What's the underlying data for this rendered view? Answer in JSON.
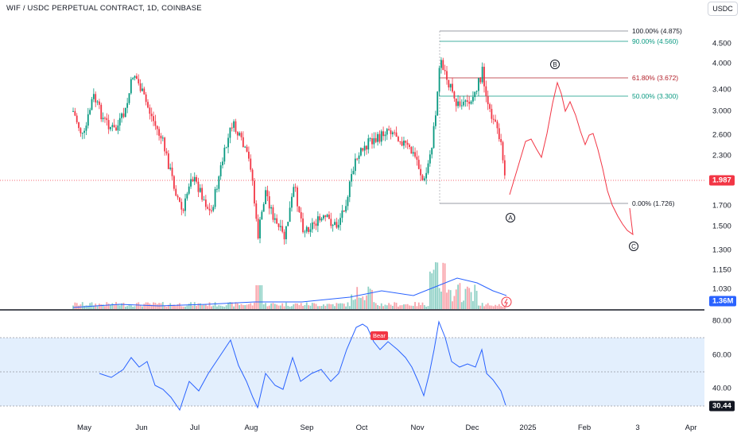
{
  "header": {
    "title": "WIF / USDC PERPETUAL CONTRACT, 1D, COINBASE",
    "currency": "USDC"
  },
  "price_axis": {
    "ticks": [
      "4.500",
      "4.000",
      "3.400",
      "3.000",
      "2.600",
      "2.300",
      "1.700",
      "1.500",
      "1.300",
      "1.150",
      "1.030"
    ]
  },
  "rsi_axis": {
    "ticks": [
      "80.00",
      "60.00",
      "40.00"
    ]
  },
  "time_axis": {
    "ticks": [
      "May",
      "Jun",
      "Jul",
      "Aug",
      "Sep",
      "Oct",
      "Nov",
      "Dec",
      "2025",
      "Feb",
      "3",
      "Apr"
    ]
  },
  "badges": {
    "price": "1.987",
    "volume": "1.36M",
    "rsi": "30.44"
  },
  "fibonacci": [
    {
      "label": "100.00% (4.875)",
      "color": "#787b86"
    },
    {
      "label": "90.00% (4.560)",
      "color": "#089981"
    },
    {
      "label": "61.80% (3.672)",
      "color": "#b2202a"
    },
    {
      "label": "50.00% (3.300)",
      "color": "#089981"
    },
    {
      "label": "0.00% (1.726)",
      "color": "#787b86"
    }
  ],
  "waves": [
    "A",
    "B",
    "C"
  ],
  "rsi_signal": "Bear",
  "colors": {
    "up": "#089981",
    "down": "#f23645",
    "rsi": "#2962ff",
    "rsi_band": "#e3effd",
    "projection": "#f23645"
  }
}
